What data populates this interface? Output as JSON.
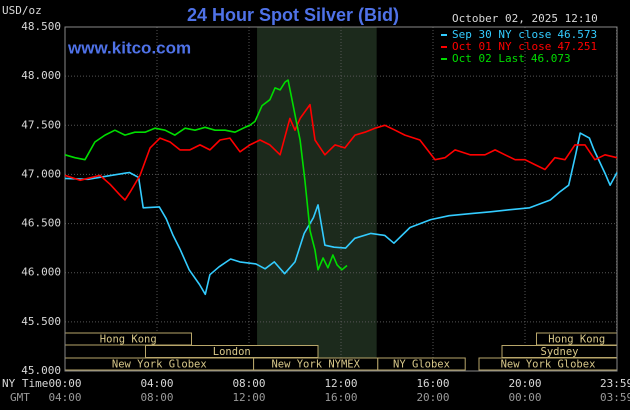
{
  "chart_data": {
    "type": "line",
    "title": "24 Hour Spot Silver (Bid)",
    "subtitle": "October 02, 2025 12:10",
    "source": "www.kitco.com",
    "y_label": "USD/oz",
    "x_label": "NY Time",
    "x2_label": "GMT",
    "xlim": [
      0,
      24
    ],
    "ylim": [
      45,
      48.5
    ],
    "yticks": [
      {
        "value": 45,
        "label": "45.000"
      },
      {
        "value": 45.5,
        "label": "45.500"
      },
      {
        "value": 46,
        "label": "46.000"
      },
      {
        "value": 46.5,
        "label": "46.500"
      },
      {
        "value": 47,
        "label": "47.000"
      },
      {
        "value": 47.5,
        "label": "47.500"
      },
      {
        "value": 48,
        "label": "48.000"
      },
      {
        "value": 48.5,
        "label": "48.500"
      }
    ],
    "xticks": [
      {
        "value": 0,
        "label": "00:00"
      },
      {
        "value": 4,
        "label": "04:00"
      },
      {
        "value": 8,
        "label": "08:00"
      },
      {
        "value": 12,
        "label": "12:00"
      },
      {
        "value": 16,
        "label": "16:00"
      },
      {
        "value": 20,
        "label": "20:00"
      },
      {
        "value": 23.983,
        "label": "23:59"
      }
    ],
    "x2ticks": [
      {
        "value": 0,
        "label": "04:00"
      },
      {
        "value": 4,
        "label": "08:00"
      },
      {
        "value": 8,
        "label": "12:00"
      },
      {
        "value": 12,
        "label": "16:00"
      },
      {
        "value": 16,
        "label": "20:00"
      },
      {
        "value": 20,
        "label": "00:00"
      },
      {
        "value": 23.983,
        "label": "03:59"
      }
    ],
    "grid": true,
    "highlight": [
      8.35,
      13.55
    ],
    "sessions": [
      {
        "name": "Hong Kong",
        "row": 0,
        "start": 0,
        "end": 5.5
      },
      {
        "name": "Hong Kong",
        "row": 0,
        "start": 20.5,
        "end": 24
      },
      {
        "name": "London",
        "row": 1,
        "start": 3.5,
        "end": 11
      },
      {
        "name": "Sydney",
        "row": 1,
        "start": 19,
        "end": 24
      },
      {
        "name": "New York Globex",
        "row": 2,
        "start": 0,
        "end": 8.2
      },
      {
        "name": "New York NYMEX",
        "row": 2,
        "start": 8.2,
        "end": 13.6
      },
      {
        "name": "NY Globex",
        "row": 2,
        "start": 13.6,
        "end": 17.4
      },
      {
        "name": "New York Globex",
        "row": 2,
        "start": 18,
        "end": 24
      }
    ],
    "series": [
      {
        "name": "Sep 30 NY close",
        "close": 46.573,
        "color": "#33ccff",
        "x": [
          0,
          1,
          2,
          2.8,
          3.2,
          3.4,
          4.1,
          4.4,
          4.7,
          5.0,
          5.4,
          5.85,
          6.1,
          6.3,
          6.7,
          7.2,
          7.6,
          8.3,
          8.7,
          9.1,
          9.55,
          10.0,
          10.4,
          10.8,
          11.0,
          11.3,
          11.7,
          12.2,
          12.6,
          13.3,
          13.9,
          14.3,
          15.0,
          15.9,
          16.7,
          17.6,
          18.5,
          19.3,
          20.2,
          21.1,
          21.5,
          21.9,
          22.2,
          22.4,
          22.8,
          23.0,
          23.5,
          23.7,
          24
        ],
        "values": [
          46.96,
          46.95,
          46.99,
          47.02,
          46.97,
          46.66,
          46.67,
          46.55,
          46.38,
          46.24,
          46.03,
          45.88,
          45.78,
          45.98,
          46.06,
          46.14,
          46.11,
          46.09,
          46.04,
          46.11,
          45.99,
          46.11,
          46.4,
          46.56,
          46.69,
          46.28,
          46.26,
          46.25,
          46.35,
          46.4,
          46.38,
          46.3,
          46.46,
          46.54,
          46.58,
          46.6,
          46.62,
          46.64,
          46.66,
          46.74,
          46.82,
          46.89,
          47.2,
          47.42,
          47.37,
          47.25,
          47.0,
          46.89,
          47.02
        ]
      },
      {
        "name": "Oct 01 NY close",
        "close": 47.251,
        "color": "#ff0000",
        "x": [
          0,
          0.65,
          1.52,
          1.96,
          2.39,
          2.61,
          2.83,
          3.26,
          3.7,
          4.13,
          4.57,
          5.0,
          5.43,
          5.87,
          6.3,
          6.74,
          7.17,
          7.61,
          8.04,
          8.48,
          8.91,
          9.35,
          9.78,
          10.0,
          10.22,
          10.65,
          10.87,
          11.3,
          11.74,
          12.17,
          12.61,
          13.04,
          13.48,
          13.91,
          14.35,
          14.78,
          15.43,
          16.09,
          16.52,
          16.96,
          17.61,
          18.26,
          18.7,
          19.13,
          19.57,
          20.0,
          20.43,
          20.87,
          21.3,
          21.74,
          22.17,
          22.61,
          23.04,
          23.48,
          24
        ],
        "values": [
          46.99,
          46.94,
          46.99,
          46.9,
          46.79,
          46.74,
          46.82,
          46.99,
          47.27,
          47.37,
          47.33,
          47.25,
          47.25,
          47.3,
          47.25,
          47.35,
          47.37,
          47.23,
          47.3,
          47.35,
          47.3,
          47.2,
          47.57,
          47.45,
          47.57,
          47.71,
          47.35,
          47.2,
          47.3,
          47.27,
          47.4,
          47.43,
          47.47,
          47.5,
          47.45,
          47.4,
          47.35,
          47.15,
          47.17,
          47.25,
          47.2,
          47.2,
          47.25,
          47.2,
          47.15,
          47.15,
          47.1,
          47.05,
          47.17,
          47.15,
          47.3,
          47.3,
          47.15,
          47.2,
          47.17
        ]
      },
      {
        "name": "Oct 02 Last",
        "close": 46.073,
        "color": "#00dd00",
        "x": [
          0,
          0.43,
          0.87,
          1.3,
          1.74,
          2.17,
          2.61,
          3.04,
          3.48,
          3.91,
          4.35,
          4.78,
          5.22,
          5.65,
          6.09,
          6.52,
          6.96,
          7.39,
          7.83,
          8.04,
          8.26,
          8.57,
          8.91,
          9.13,
          9.35,
          9.57,
          9.7,
          9.87,
          10.04,
          10.22,
          10.43,
          10.65,
          10.87,
          11.0,
          11.22,
          11.43,
          11.65,
          11.83,
          12.04,
          12.26
        ],
        "values": [
          47.2,
          47.17,
          47.15,
          47.33,
          47.4,
          47.45,
          47.4,
          47.43,
          47.43,
          47.47,
          47.45,
          47.4,
          47.47,
          47.45,
          47.48,
          47.45,
          47.45,
          47.43,
          47.48,
          47.5,
          47.54,
          47.7,
          47.76,
          47.88,
          47.86,
          47.94,
          47.96,
          47.76,
          47.56,
          47.35,
          46.94,
          46.43,
          46.23,
          46.03,
          46.15,
          46.05,
          46.18,
          46.08,
          46.03,
          46.073
        ]
      }
    ]
  }
}
